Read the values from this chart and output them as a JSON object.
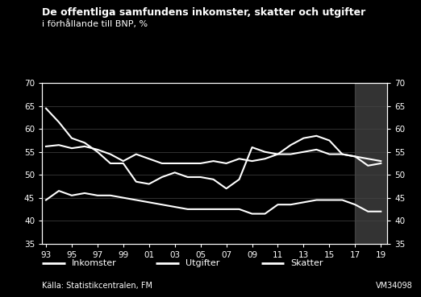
{
  "title_line1": "De offentliga samfundens inkomster, skatter och utgifter",
  "title_line2": "i förhållande till BNP, %",
  "background_color": "#000000",
  "text_color": "#ffffff",
  "grid_color": "#444444",
  "line_color": "#ffffff",
  "shade_color": "#666666",
  "shade_alpha": 0.5,
  "ylim": [
    35,
    70
  ],
  "yticks": [
    35,
    40,
    45,
    50,
    55,
    60,
    65,
    70
  ],
  "xlabel_source": "Källa: Statistikcentralen, FM",
  "watermark": "VM34098",
  "forecast_start_year": 2017,
  "years": [
    1993,
    1994,
    1995,
    1996,
    1997,
    1998,
    1999,
    2000,
    2001,
    2002,
    2003,
    2004,
    2005,
    2006,
    2007,
    2008,
    2009,
    2010,
    2011,
    2012,
    2013,
    2014,
    2015,
    2016,
    2017,
    2018,
    2019
  ],
  "inkomster": [
    56.2,
    56.5,
    55.8,
    56.2,
    55.5,
    54.5,
    53.0,
    54.5,
    53.5,
    52.5,
    52.5,
    52.5,
    52.5,
    53.0,
    52.5,
    53.5,
    53.0,
    53.5,
    54.5,
    54.5,
    55.0,
    55.5,
    54.5,
    54.5,
    54.0,
    53.5,
    53.0
  ],
  "utgifter": [
    64.5,
    61.5,
    58.0,
    57.0,
    55.0,
    52.5,
    52.5,
    48.5,
    48.0,
    49.5,
    50.5,
    49.5,
    49.5,
    49.0,
    47.0,
    49.0,
    56.0,
    55.0,
    54.5,
    56.5,
    58.0,
    58.5,
    57.5,
    54.5,
    54.0,
    52.0,
    52.5
  ],
  "skatter": [
    44.5,
    46.5,
    45.5,
    46.0,
    45.5,
    45.5,
    45.0,
    44.5,
    44.0,
    43.5,
    43.0,
    42.5,
    42.5,
    42.5,
    42.5,
    42.5,
    41.5,
    41.5,
    43.5,
    43.5,
    44.0,
    44.5,
    44.5,
    44.5,
    43.5,
    42.0,
    42.0
  ],
  "xtick_labels": [
    "93",
    "95",
    "97",
    "99",
    "01",
    "03",
    "05",
    "07",
    "09",
    "11",
    "13",
    "15",
    "17",
    "19"
  ],
  "xtick_years": [
    1993,
    1995,
    1997,
    1999,
    2001,
    2003,
    2005,
    2007,
    2009,
    2011,
    2013,
    2015,
    2017,
    2019
  ],
  "legend_labels": [
    "Inkomster",
    "Utgifter",
    "Skatter"
  ]
}
